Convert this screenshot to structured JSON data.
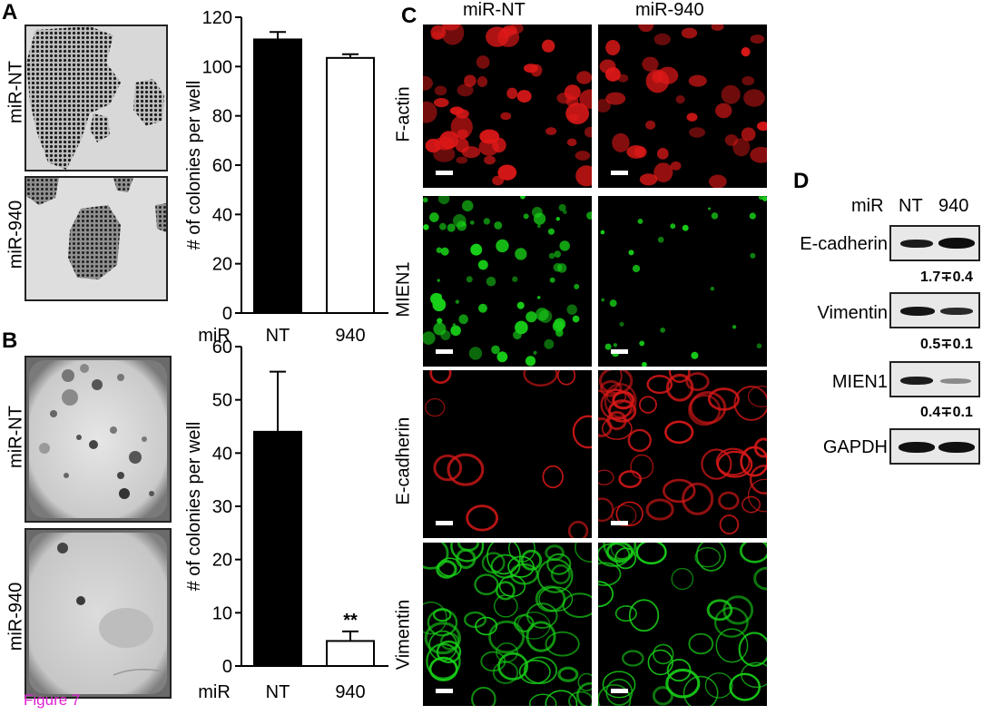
{
  "panels": {
    "A": {
      "letter": "A",
      "row_labels": [
        "miR-NT",
        "miR-940"
      ],
      "chart_data": {
        "type": "bar",
        "categories": [
          "NT",
          "940"
        ],
        "values": [
          111,
          103.5
        ],
        "errors": [
          3,
          1.5
        ],
        "fills": [
          "#000000",
          "#ffffff"
        ],
        "title": "",
        "xlabel": "miR",
        "ylabel": "# of colonies per well",
        "ylim": [
          0,
          120
        ],
        "yticks": [
          0,
          20,
          40,
          60,
          80,
          100,
          120
        ],
        "annotations": []
      }
    },
    "B": {
      "letter": "B",
      "row_labels": [
        "miR-NT",
        "miR-940"
      ],
      "chart_data": {
        "type": "bar",
        "categories": [
          "NT",
          "940"
        ],
        "values": [
          44,
          4.7
        ],
        "errors": [
          11.3,
          1.8
        ],
        "fills": [
          "#000000",
          "#ffffff"
        ],
        "title": "",
        "xlabel": "miR",
        "ylabel": "# of colonies per well",
        "ylim": [
          0,
          60
        ],
        "yticks": [
          0,
          10,
          20,
          30,
          40,
          50,
          60
        ],
        "annotations": [
          "",
          "**"
        ]
      }
    },
    "C": {
      "letter": "C",
      "col_labels": [
        "miR-NT",
        "miR-940"
      ],
      "row_labels": [
        "F-actin",
        "MIEN1",
        "E-cadherin",
        "Vimentin"
      ],
      "row_colors": [
        "#e01818",
        "#18d018",
        "#d81818",
        "#18d018"
      ]
    },
    "D": {
      "letter": "D",
      "header": {
        "miR": "miR",
        "NT": "NT",
        "n940": "940"
      },
      "blots": [
        {
          "label": "E-cadherin",
          "ratio": "1.7∓0.4"
        },
        {
          "label": "Vimentin",
          "ratio": "0.5∓0.1"
        },
        {
          "label": "MIEN1",
          "ratio": "0.4∓0.1"
        },
        {
          "label": "GAPDH",
          "ratio": ""
        }
      ]
    }
  },
  "caption": "Figure 7"
}
